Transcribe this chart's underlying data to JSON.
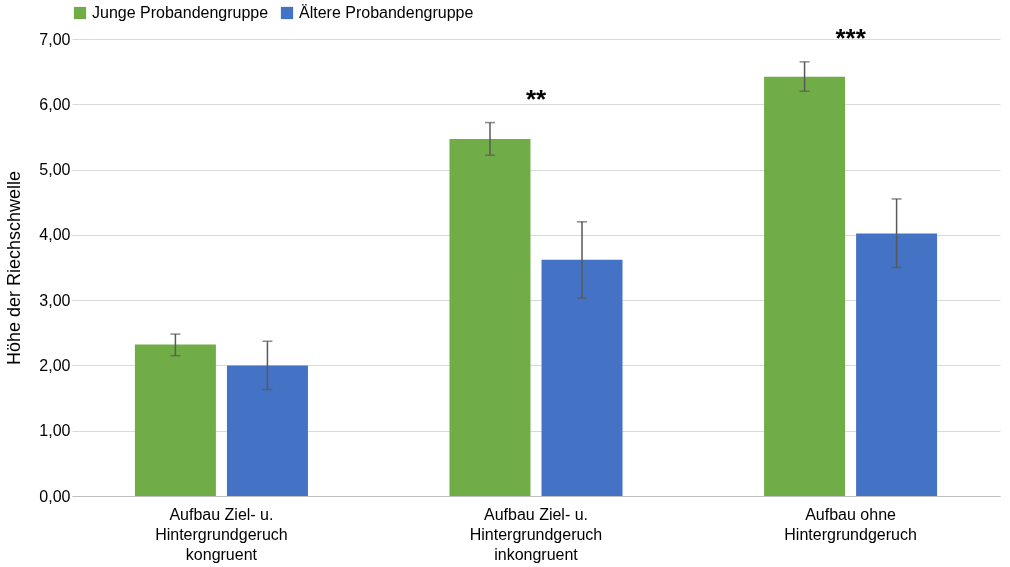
{
  "chart_data": {
    "type": "bar",
    "ylabel": "Höhe der Riechschwelle",
    "categories": [
      "Aufbau Ziel- u.\nHintergrundgeruch\nkongruent",
      "Aufbau Ziel- u.\nHintergrundgeruch\ninkongruent",
      "Aufbau ohne\nHintergrundgeruch"
    ],
    "series": [
      {
        "name": "Junge Probandengruppe",
        "color": "#70ad47",
        "values": [
          2.32,
          5.47,
          6.42
        ],
        "errors": [
          [
            2.15,
            2.48
          ],
          [
            5.22,
            5.72
          ],
          [
            6.2,
            6.65
          ]
        ]
      },
      {
        "name": "Ältere Probandengruppe",
        "color": "#4472c4",
        "values": [
          2.0,
          3.62,
          4.02
        ],
        "errors": [
          [
            1.63,
            2.37
          ],
          [
            3.03,
            4.2
          ],
          [
            3.5,
            4.55
          ]
        ]
      }
    ],
    "ylim": [
      0,
      7
    ],
    "yticks": [
      {
        "value": 0,
        "label": "0,00"
      },
      {
        "value": 1,
        "label": "1,00"
      },
      {
        "value": 2,
        "label": "2,00"
      },
      {
        "value": 3,
        "label": "3,00"
      },
      {
        "value": 4,
        "label": "4,00"
      },
      {
        "value": 5,
        "label": "5,00"
      },
      {
        "value": 6,
        "label": "6,00"
      },
      {
        "value": 7,
        "label": "7,00"
      }
    ],
    "grid": "y",
    "legend": "top",
    "annotations": [
      "**",
      "***"
    ]
  }
}
